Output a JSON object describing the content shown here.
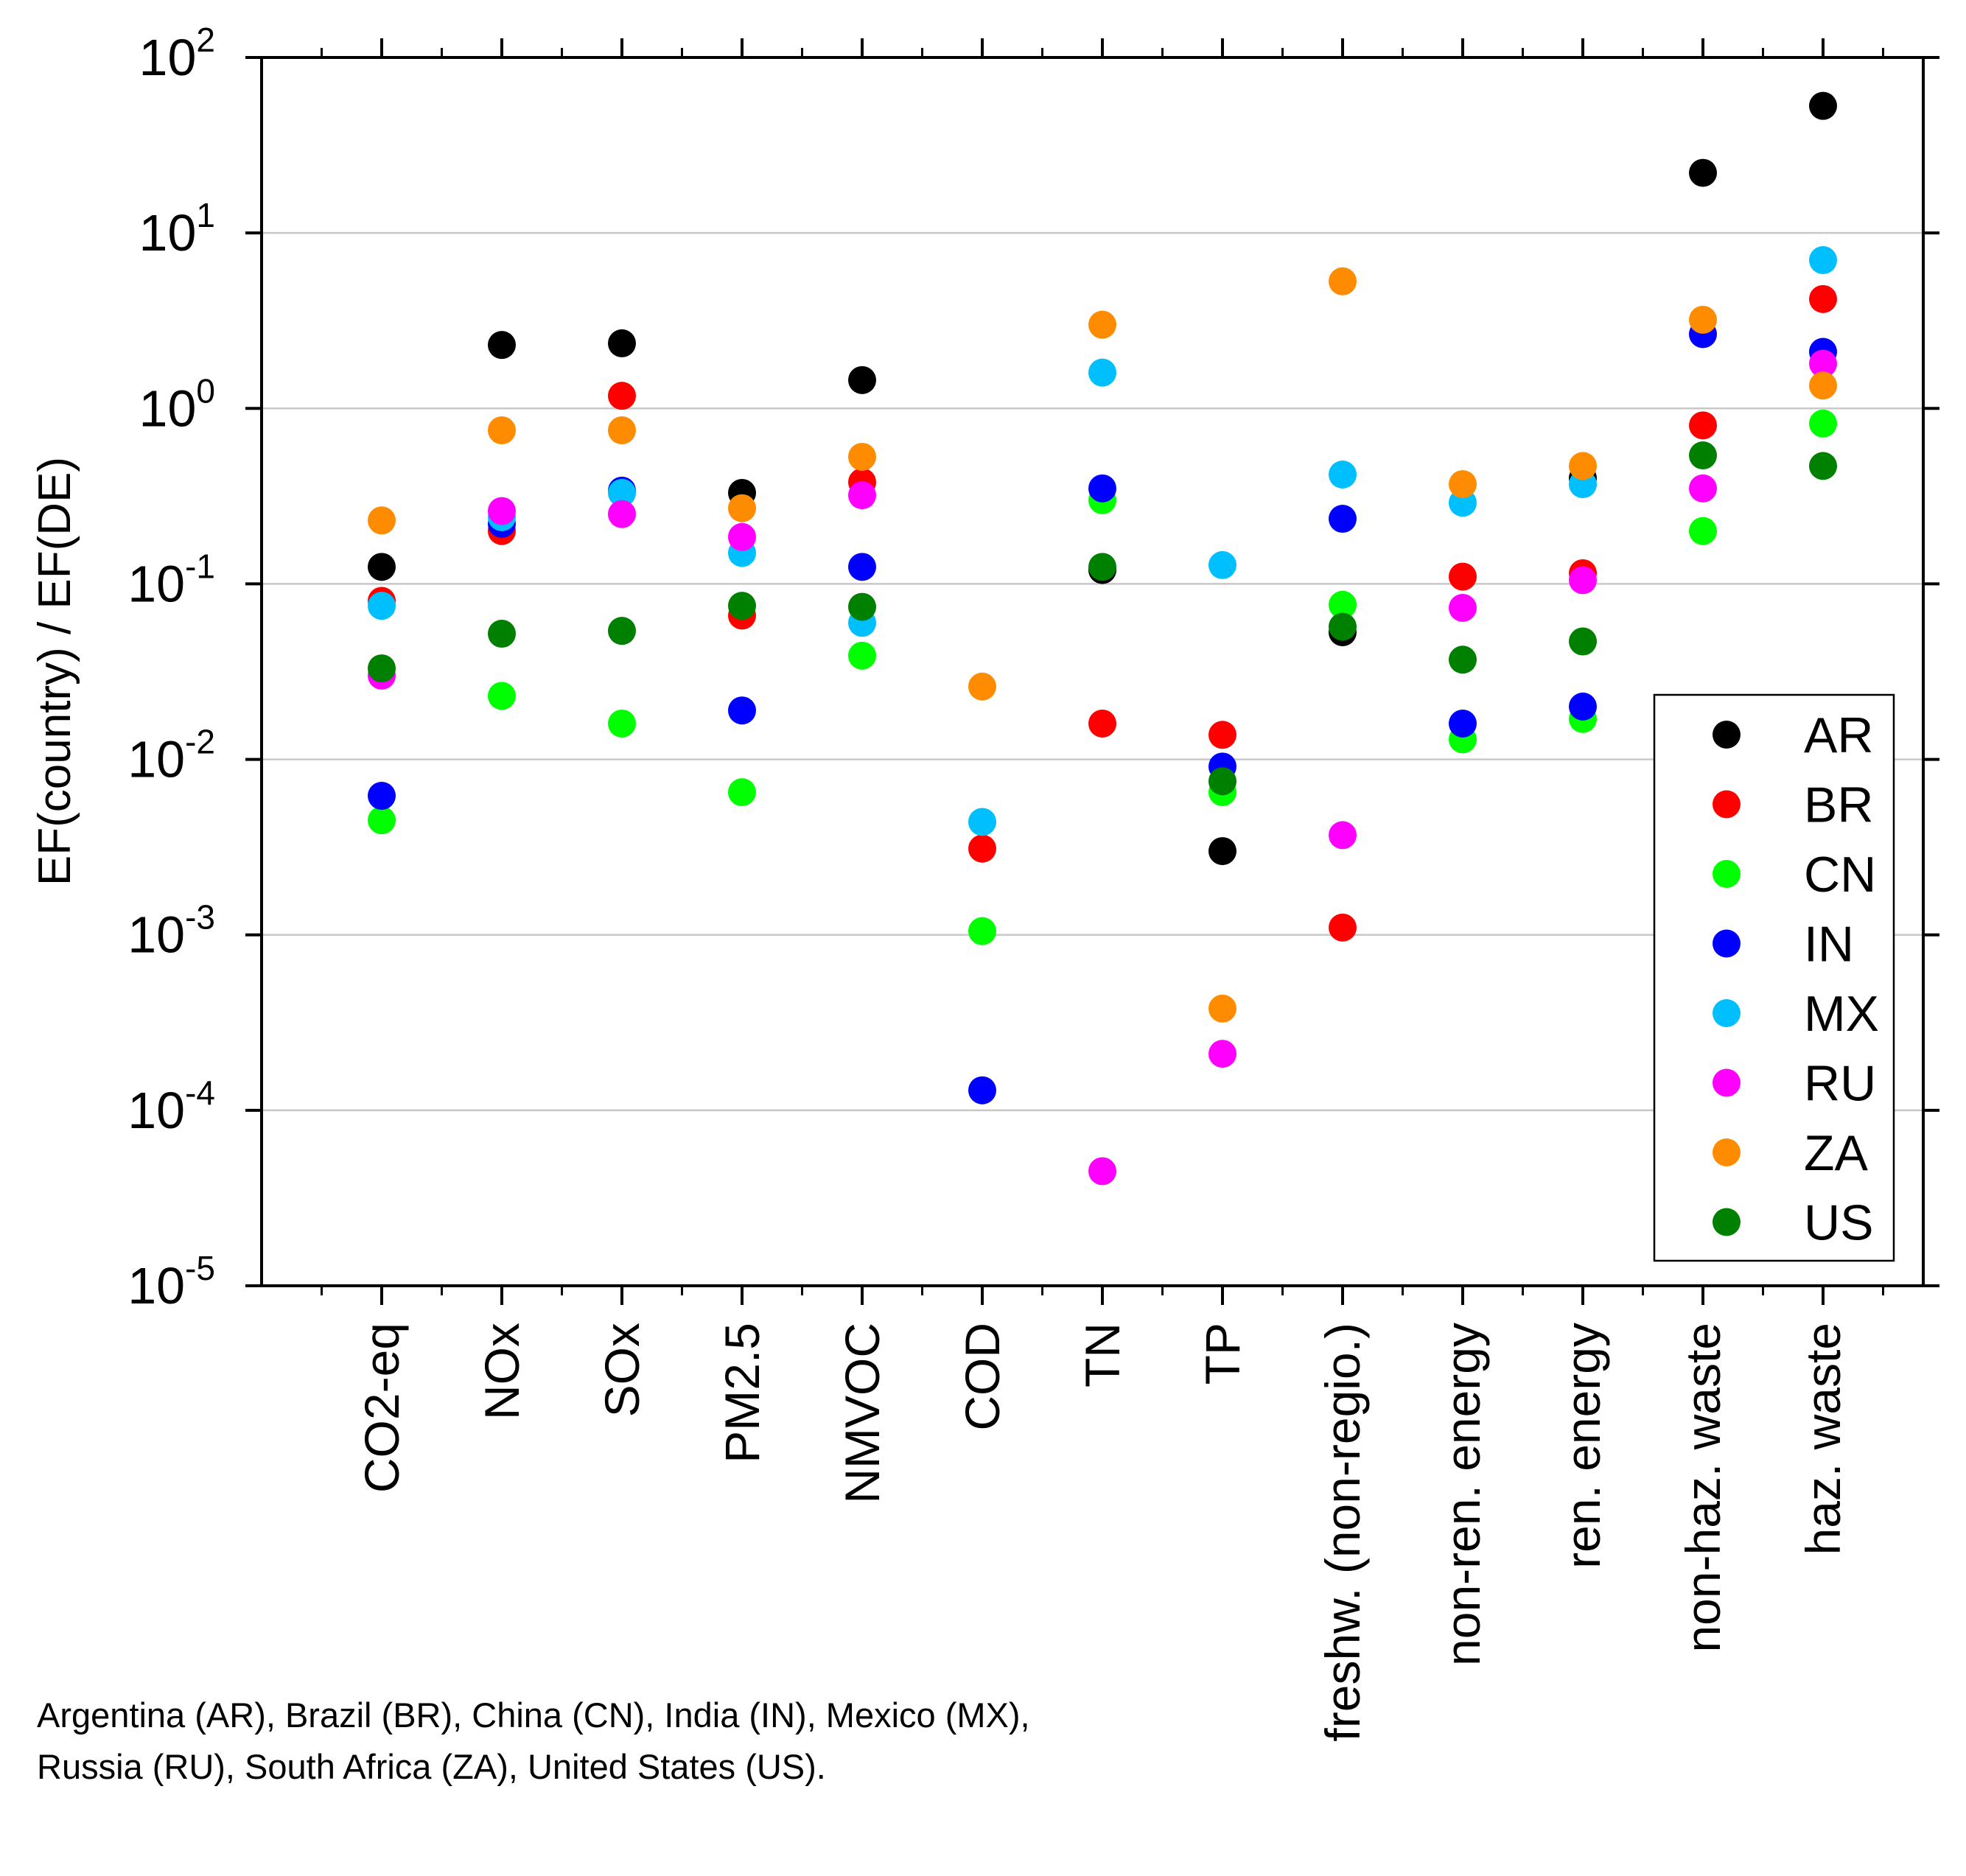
{
  "chart_data": {
    "type": "scatter",
    "yscale": "log",
    "ylim": [
      1e-05,
      100
    ],
    "ylabel": "EF(country) / EF(DE)",
    "xlabel": "",
    "title": "",
    "grid": "horizontal",
    "legend_position": "right",
    "y_ticks": [
      {
        "base": "10",
        "exp": "-5",
        "value": 1e-05
      },
      {
        "base": "10",
        "exp": "-4",
        "value": 0.0001
      },
      {
        "base": "10",
        "exp": "-3",
        "value": 0.001
      },
      {
        "base": "10",
        "exp": "-2",
        "value": 0.01
      },
      {
        "base": "10",
        "exp": "-1",
        "value": 0.1
      },
      {
        "base": "10",
        "exp": "0",
        "value": 1
      },
      {
        "base": "10",
        "exp": "1",
        "value": 10
      },
      {
        "base": "10",
        "exp": "2",
        "value": 100
      }
    ],
    "categories": [
      "CO2-eq",
      "NOx",
      "SOx",
      "PM2.5",
      "NMVOC",
      "COD",
      "TN",
      "TP",
      "freshw. (non-regio.)",
      "non-ren. energy",
      "ren. energy",
      "non-haz. waste",
      "haz. waste"
    ],
    "series": [
      {
        "name": "AR",
        "color": "#000000",
        "values": [
          0.125,
          2.3,
          2.35,
          0.33,
          1.45,
          null,
          0.12,
          0.003,
          0.053,
          null,
          0.4,
          22,
          53
        ]
      },
      {
        "name": "BR",
        "color": "#ff0000",
        "values": [
          0.08,
          0.2,
          1.18,
          0.066,
          0.38,
          0.0031,
          0.016,
          0.0138,
          0.0011,
          0.11,
          0.115,
          0.8,
          4.2
        ]
      },
      {
        "name": "CN",
        "color": "#00ff00",
        "values": [
          0.0045,
          0.023,
          0.016,
          0.0065,
          0.039,
          0.00105,
          0.3,
          0.0065,
          0.076,
          0.013,
          0.017,
          0.2,
          0.82
        ]
      },
      {
        "name": "IN",
        "color": "#0000ff",
        "values": [
          0.0062,
          0.22,
          0.34,
          0.019,
          0.125,
          0.00013,
          0.35,
          0.0091,
          0.235,
          0.016,
          0.02,
          2.65,
          2.1
        ]
      },
      {
        "name": "MX",
        "color": "#00bfff",
        "values": [
          0.075,
          0.24,
          0.33,
          0.15,
          0.06,
          0.0044,
          1.6,
          0.128,
          0.42,
          0.29,
          0.37,
          null,
          7
        ]
      },
      {
        "name": "RU",
        "color": "#ff00ff",
        "values": [
          0.03,
          0.26,
          0.25,
          0.185,
          0.32,
          null,
          4.5e-05,
          0.00021,
          0.0037,
          0.073,
          0.105,
          0.35,
          1.8
        ]
      },
      {
        "name": "ZA",
        "color": "#ff8c00",
        "values": [
          0.23,
          0.75,
          0.75,
          0.27,
          0.53,
          0.026,
          3.0,
          0.00038,
          5.3,
          0.37,
          0.47,
          3.2,
          1.35
        ]
      },
      {
        "name": "US",
        "color": "#008000",
        "values": [
          0.033,
          0.052,
          0.054,
          0.075,
          0.074,
          null,
          0.125,
          0.0075,
          0.057,
          0.037,
          0.047,
          0.54,
          0.47
        ]
      }
    ]
  },
  "footnote": {
    "line1": "Argentina (AR), Brazil (BR), China (CN), India (IN), Mexico (MX),",
    "line2": "Russia (RU), South Africa (ZA), United States (US)."
  }
}
